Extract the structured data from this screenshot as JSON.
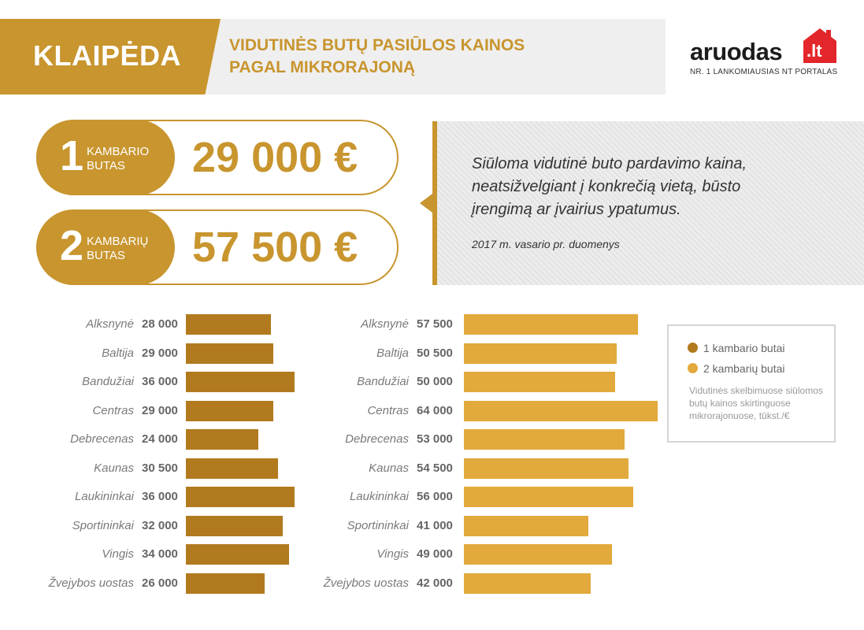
{
  "header": {
    "city": "KLAIPĖDA",
    "title_line1": "VIDUTINĖS BUTŲ PASIŪLOS KAINOS",
    "title_line2": "PAGAL MIKRORAJONĄ"
  },
  "logo": {
    "word": "aruodas",
    "tld": ".lt",
    "tagline": "NR. 1 LANKOMIAUSIAS NT PORTALAS",
    "icon": "house-icon"
  },
  "prices": [
    {
      "number": "1",
      "label_line1": "KAMBARIO",
      "label_line2": "BUTAS",
      "price": "29 000 €"
    },
    {
      "number": "2",
      "label_line1": "KAMBARIŲ",
      "label_line2": "BUTAS",
      "price": "57 500 €"
    }
  ],
  "note": {
    "text": "Siūloma vidutinė buto pardavimo kaina, neatsižvelgiant į konkrečią vietą, būsto įrengimą ar įvairius ypatumus.",
    "source": "2017 m. vasario pr. duomenys"
  },
  "legend": {
    "item1": "1 kambario butai",
    "item2": "2 kambarių butai",
    "note": "Vidutinės skelbimuose siūlomos butų kainos skirtinguose mikrorajonuose, tūkst./€"
  },
  "colors": {
    "gold": "#c8952e",
    "one_room": "#b27a1e",
    "two_room": "#e2a93c"
  },
  "chart_data": {
    "type": "bar",
    "orientation": "horizontal",
    "categories": [
      "Alksnynė",
      "Baltija",
      "Bandužiai",
      "Centras",
      "Debrecenas",
      "Kaunas",
      "Laukininkai",
      "Sportininkai",
      "Vingis",
      "Žvejybos uostas"
    ],
    "series": [
      {
        "name": "1 kambario butai",
        "values": [
          28000,
          29000,
          36000,
          29000,
          24000,
          30500,
          36000,
          32000,
          34000,
          26000
        ],
        "labels": [
          "28 000",
          "29 000",
          "36 000",
          "29 000",
          "24 000",
          "30 500",
          "36 000",
          "32 000",
          "34 000",
          "26 000"
        ]
      },
      {
        "name": "2 kambarių butai",
        "values": [
          57500,
          50500,
          50000,
          64000,
          53000,
          54500,
          56000,
          41000,
          49000,
          42000
        ],
        "labels": [
          "57 500",
          "50 500",
          "50 000",
          "64 000",
          "53 000",
          "54 500",
          "56 000",
          "41 000",
          "49 000",
          "42 000"
        ]
      }
    ],
    "grid": false,
    "legend_position": "right"
  }
}
